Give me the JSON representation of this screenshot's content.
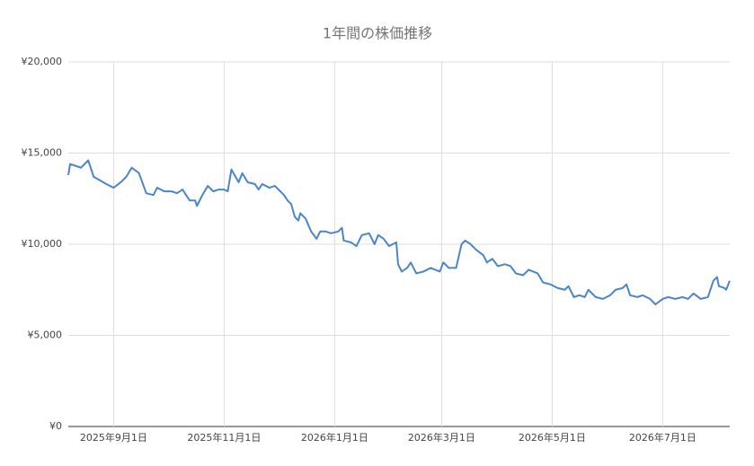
{
  "chart_data": {
    "type": "line",
    "title": "1年間の株価推移",
    "x": [
      "2025-08-07",
      "2025-08-08",
      "2025-08-14",
      "2025-08-18",
      "2025-08-21",
      "2025-08-28",
      "2025-09-01",
      "2025-09-05",
      "2025-09-08",
      "2025-09-11",
      "2025-09-15",
      "2025-09-19",
      "2025-09-23",
      "2025-09-25",
      "2025-09-29",
      "2025-10-03",
      "2025-10-06",
      "2025-10-09",
      "2025-10-13",
      "2025-10-16",
      "2025-10-17",
      "2025-10-20",
      "2025-10-23",
      "2025-10-26",
      "2025-10-29",
      "2025-11-01",
      "2025-11-03",
      "2025-11-05",
      "2025-11-09",
      "2025-11-11",
      "2025-11-14",
      "2025-11-18",
      "2025-11-20",
      "2025-11-22",
      "2025-11-26",
      "2025-11-29",
      "2025-12-02",
      "2025-12-04",
      "2025-12-06",
      "2025-12-08",
      "2025-12-10",
      "2025-12-12",
      "2025-12-13",
      "2025-12-16",
      "2025-12-19",
      "2025-12-22",
      "2025-12-24",
      "2025-12-27",
      "2025-12-30",
      "2026-01-03",
      "2026-01-05",
      "2026-01-06",
      "2026-01-10",
      "2026-01-13",
      "2026-01-16",
      "2026-01-20",
      "2026-01-23",
      "2026-01-25",
      "2026-01-28",
      "2026-01-31",
      "2026-02-02",
      "2026-02-04",
      "2026-02-05",
      "2026-02-07",
      "2026-02-10",
      "2026-02-12",
      "2026-02-15",
      "2026-02-19",
      "2026-02-23",
      "2026-02-28",
      "2026-03-02",
      "2026-03-05",
      "2026-03-09",
      "2026-03-12",
      "2026-03-14",
      "2026-03-17",
      "2026-03-20",
      "2026-03-24",
      "2026-03-26",
      "2026-03-29",
      "2026-04-01",
      "2026-04-05",
      "2026-04-08",
      "2026-04-11",
      "2026-04-15",
      "2026-04-18",
      "2026-04-23",
      "2026-04-26",
      "2026-04-30",
      "2026-05-04",
      "2026-05-08",
      "2026-05-10",
      "2026-05-13",
      "2026-05-16",
      "2026-05-19",
      "2026-05-21",
      "2026-05-25",
      "2026-05-29",
      "2026-06-02",
      "2026-06-05",
      "2026-06-09",
      "2026-06-11",
      "2026-06-13",
      "2026-06-17",
      "2026-06-20",
      "2026-06-24",
      "2026-06-27",
      "2026-07-01",
      "2026-07-04",
      "2026-07-08",
      "2026-07-12",
      "2026-07-15",
      "2026-07-18",
      "2026-07-22",
      "2026-07-26",
      "2026-07-29",
      "2026-07-31",
      "2026-08-01",
      "2026-08-04",
      "2026-08-05",
      "2026-08-07"
    ],
    "series": [
      {
        "color": "#4a86c8",
        "values": [
          13800,
          14400,
          14200,
          14600,
          13700,
          13300,
          13100,
          13400,
          13700,
          14200,
          13900,
          12800,
          12700,
          13100,
          12900,
          12900,
          12800,
          13000,
          12400,
          12400,
          12100,
          12700,
          13200,
          12900,
          13000,
          13000,
          12900,
          14100,
          13400,
          13900,
          13400,
          13300,
          13000,
          13300,
          13100,
          13200,
          12900,
          12700,
          12400,
          12200,
          11500,
          11300,
          11700,
          11400,
          10700,
          10300,
          10700,
          10700,
          10600,
          10700,
          10900,
          10200,
          10100,
          9900,
          10500,
          10600,
          10000,
          10500,
          10300,
          9900,
          10000,
          10100,
          8900,
          8500,
          8700,
          9000,
          8400,
          8500,
          8700,
          8500,
          9000,
          8700,
          8700,
          10000,
          10200,
          10000,
          9700,
          9400,
          9000,
          9200,
          8800,
          8900,
          8800,
          8400,
          8300,
          8600,
          8400,
          7900,
          7800,
          7600,
          7500,
          7700,
          7100,
          7200,
          7100,
          7500,
          7100,
          7000,
          7200,
          7500,
          7600,
          7800,
          7200,
          7100,
          7200,
          7000,
          6700,
          7000,
          7100,
          7000,
          7100,
          7000,
          7300,
          7000,
          7100,
          8000,
          8200,
          7700,
          7600,
          7500,
          8000
        ]
      }
    ],
    "xlim": [
      "2025-08-07",
      "2026-08-07"
    ],
    "xticks": [
      {
        "value": "2025-09-01",
        "label": "2025年9月1日"
      },
      {
        "value": "2025-11-01",
        "label": "2025年11月1日"
      },
      {
        "value": "2026-01-01",
        "label": "2026年1月1日"
      },
      {
        "value": "2026-03-01",
        "label": "2026年3月1日"
      },
      {
        "value": "2026-05-01",
        "label": "2026年5月1日"
      },
      {
        "value": "2026-07-01",
        "label": "2026年7月1日"
      }
    ],
    "ylim": [
      0,
      20000
    ],
    "yticks": [
      {
        "value": 0,
        "label": "¥0"
      },
      {
        "value": 5000,
        "label": "¥5,000"
      },
      {
        "value": 10000,
        "label": "¥10,000"
      },
      {
        "value": 15000,
        "label": "¥15,000"
      },
      {
        "value": 20000,
        "label": "¥20,000"
      }
    ],
    "grid": true
  }
}
